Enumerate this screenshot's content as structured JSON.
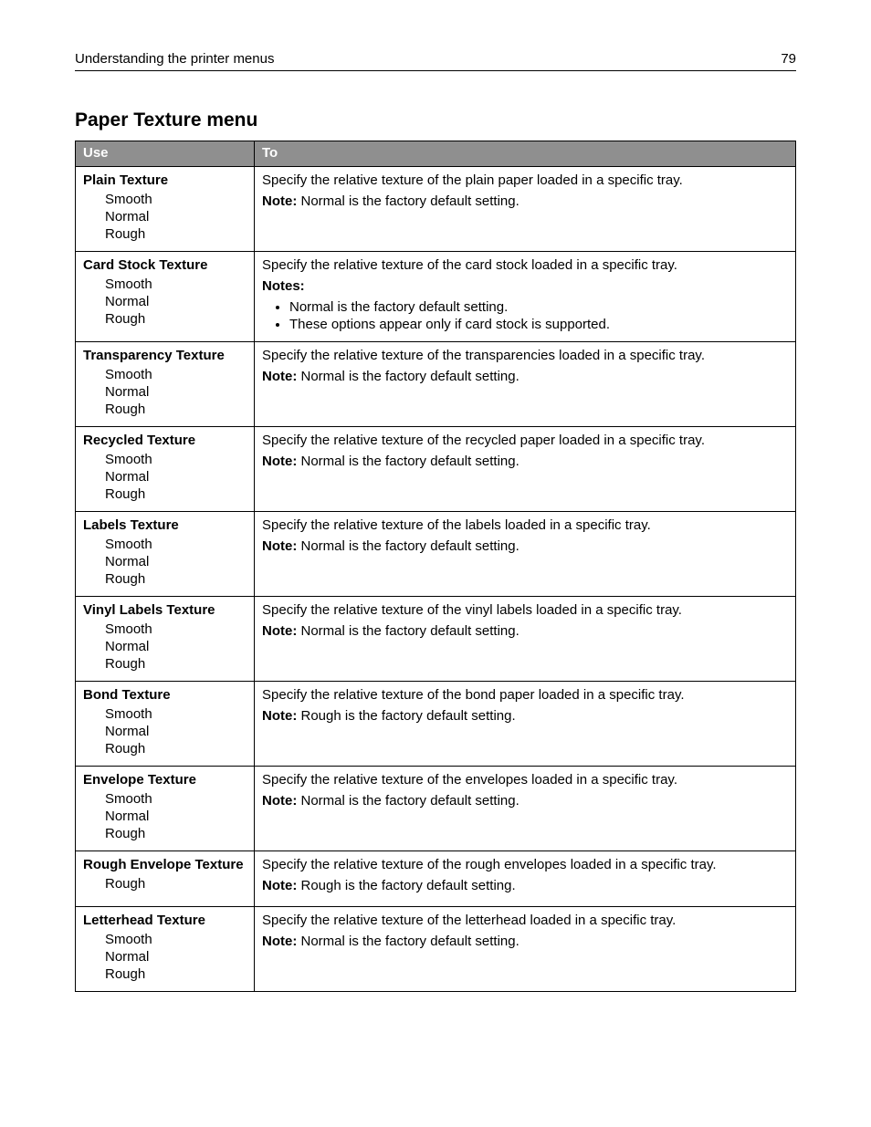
{
  "header": {
    "title": "Understanding the printer menus",
    "page_number": "79"
  },
  "section_title": "Paper Texture menu",
  "columns": {
    "use": "Use",
    "to": "To"
  },
  "rows": [
    {
      "name": "Plain Texture",
      "options": [
        "Smooth",
        "Normal",
        "Rough"
      ],
      "specify": "Specify the relative texture of the plain paper loaded in a specific tray.",
      "note_label": "Note:",
      "note_text": " Normal is the factory default setting."
    },
    {
      "name": "Card Stock Texture",
      "options": [
        "Smooth",
        "Normal",
        "Rough"
      ],
      "specify": "Specify the relative texture of the card stock loaded in a specific tray.",
      "notes_label": "Notes:",
      "bullets": [
        "Normal is the factory default setting.",
        "These options appear only if card stock is supported."
      ]
    },
    {
      "name": "Transparency Texture",
      "options": [
        "Smooth",
        "Normal",
        "Rough"
      ],
      "specify": "Specify the relative texture of the transparencies loaded in a specific tray.",
      "note_label": "Note:",
      "note_text": " Normal is the factory default setting."
    },
    {
      "name": "Recycled Texture",
      "options": [
        "Smooth",
        "Normal",
        "Rough"
      ],
      "specify": "Specify the relative texture of the recycled paper loaded in a specific tray.",
      "note_label": "Note:",
      "note_text": " Normal is the factory default setting."
    },
    {
      "name": "Labels Texture",
      "options": [
        "Smooth",
        "Normal",
        "Rough"
      ],
      "specify": "Specify the relative texture of the labels loaded in a specific tray.",
      "note_label": "Note:",
      "note_text": " Normal is the factory default setting."
    },
    {
      "name": "Vinyl Labels Texture",
      "options": [
        "Smooth",
        "Normal",
        "Rough"
      ],
      "specify": "Specify the relative texture of the vinyl labels loaded in a specific tray.",
      "note_label": "Note:",
      "note_text": " Normal is the factory default setting."
    },
    {
      "name": "Bond Texture",
      "options": [
        "Smooth",
        "Normal",
        "Rough"
      ],
      "specify": "Specify the relative texture of the bond paper loaded in a specific tray.",
      "note_label": "Note:",
      "note_text": " Rough is the factory default setting."
    },
    {
      "name": "Envelope Texture",
      "options": [
        "Smooth",
        "Normal",
        "Rough"
      ],
      "specify": "Specify the relative texture of the envelopes loaded in a specific tray.",
      "note_label": "Note:",
      "note_text": " Normal is the factory default setting."
    },
    {
      "name": "Rough Envelope Texture",
      "options": [
        "Rough"
      ],
      "specify": "Specify the relative texture of the rough envelopes loaded in a specific tray.",
      "note_label": "Note:",
      "note_text": " Rough is the factory default setting."
    },
    {
      "name": "Letterhead Texture",
      "options": [
        "Smooth",
        "Normal",
        "Rough"
      ],
      "specify": "Specify the relative texture of the letterhead loaded in a specific tray.",
      "note_label": "Note:",
      "note_text": " Normal is the factory default setting."
    }
  ]
}
